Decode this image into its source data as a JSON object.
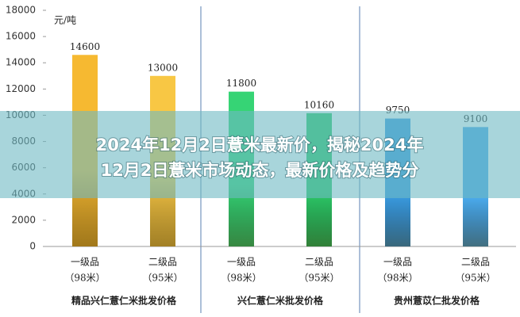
{
  "chart_data": {
    "type": "bar",
    "title_lines": [
      "2024年12月2日薏米最新价，揭秘2024年",
      "12月2日薏米市场动态，最新价格及趋势分"
    ],
    "unit": "元/吨",
    "categories": [
      "一级品",
      "二级品",
      "一级品",
      "二级品",
      "一级品",
      "二级品"
    ],
    "sub_categories": [
      "（98米）",
      "（95米）",
      "（98米）",
      "（95米）",
      "（98米）",
      "（95米）"
    ],
    "groups": [
      "精品兴仁薏仁米批发价格",
      "兴仁薏仁米批发价格",
      "贵州薏苡仁批发价格"
    ],
    "values": [
      14600,
      13000,
      11800,
      10160,
      9750,
      9100
    ],
    "colors": [
      "#f6b931",
      "#f8c744",
      "#36d475",
      "#2cc766",
      "#3a9be0",
      "#4aa8e8"
    ],
    "ylim": [
      0,
      18000
    ],
    "yticks": [
      0,
      2000,
      4000,
      6000,
      8000,
      10000,
      12000,
      14000,
      16000,
      18000
    ]
  }
}
